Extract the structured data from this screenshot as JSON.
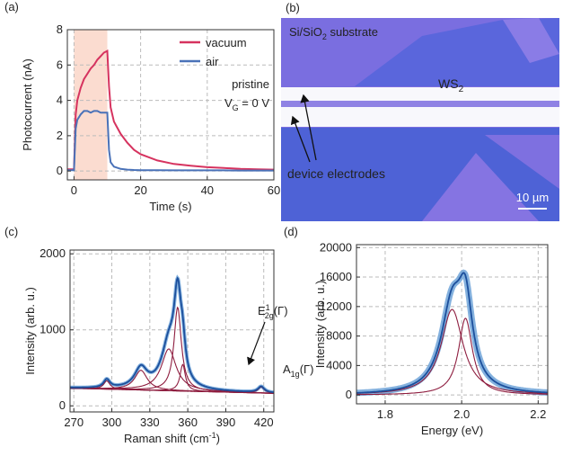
{
  "chart_data": [
    {
      "type": "line",
      "title": "(a)",
      "x_label": "Time (s)",
      "y_label": "Photocurrent (nA)",
      "x": [
        -2,
        0,
        0.5,
        1,
        2,
        3,
        4,
        5,
        6,
        7,
        8,
        9,
        10,
        10.5,
        11,
        12,
        14,
        16,
        18,
        20,
        25,
        30,
        35,
        40,
        45,
        50,
        55,
        60
      ],
      "series": [
        {
          "name": "vacuum",
          "color": "#d6335f",
          "values": [
            0.1,
            0.1,
            3.2,
            4.0,
            4.7,
            5.2,
            5.5,
            5.8,
            6.0,
            6.3,
            6.5,
            6.7,
            6.8,
            4.8,
            3.6,
            2.8,
            2.1,
            1.6,
            1.2,
            0.95,
            0.6,
            0.4,
            0.3,
            0.22,
            0.17,
            0.12,
            0.1,
            0.08
          ]
        },
        {
          "name": "air",
          "color": "#4a72b8",
          "values": [
            0.05,
            0.05,
            2.4,
            2.9,
            3.2,
            3.4,
            3.4,
            3.3,
            3.4,
            3.4,
            3.3,
            3.3,
            3.3,
            1.2,
            0.5,
            0.25,
            0.12,
            0.08,
            0.06,
            0.05,
            0.05,
            0.04,
            0.04,
            0.04,
            0.04,
            0.03,
            0.03,
            0.03
          ]
        }
      ],
      "xlim": [
        -2,
        60
      ],
      "ylim": [
        -0.5,
        8
      ],
      "xticks": [
        0,
        20,
        40,
        60
      ],
      "yticks": [
        0,
        2,
        4,
        6,
        8
      ],
      "grid": true,
      "legend": "upper right",
      "shade": {
        "x": [
          0,
          10
        ],
        "color": "#fbdcd0"
      },
      "annotations": [
        "pristine",
        {
          "text": "V",
          "sub": "G",
          "after": " = 0 V"
        }
      ]
    },
    {
      "type": "spectrum",
      "title": "(c)",
      "x_label": {
        "text": "Raman shift (cm",
        "sup": "-1",
        "after": ")"
      },
      "y_label": "Intensity (arb. u.)",
      "xlim": [
        267,
        428
      ],
      "ylim": [
        -80,
        2050
      ],
      "xticks": [
        270,
        300,
        330,
        360,
        390,
        420
      ],
      "yticks": [
        0,
        1000,
        2000
      ],
      "grid": true,
      "data_color": "#6fa3d8",
      "fit_color": "#1c4f9c",
      "component_color": "#8e1d3f",
      "baseline": {
        "x": [
          270,
          425
        ],
        "y": [
          230,
          165
        ]
      },
      "peaks": [
        {
          "center": 296,
          "height": 110,
          "width": 3
        },
        {
          "center": 323,
          "height": 260,
          "width": 6
        },
        {
          "center": 345,
          "height": 550,
          "width": 7
        },
        {
          "center": 352,
          "height": 1100,
          "width": 3.5
        },
        {
          "center": 356,
          "height": 350,
          "width": 2.5
        },
        {
          "center": 418,
          "height": 80,
          "width": 3
        }
      ],
      "annotations": [
        {
          "text": "E",
          "sup": "1",
          "sub": "2g",
          "after": "(Γ)"
        },
        {
          "text": "A",
          "sub": "1g",
          "after": "(Γ)"
        }
      ]
    },
    {
      "type": "spectrum",
      "title": "(d)",
      "x_label": "Energy (eV)",
      "y_label": "Intensity (arb. u.)",
      "xlim": [
        1.725,
        2.225
      ],
      "ylim": [
        -1200,
        20400
      ],
      "xticks": [
        1.8,
        {
          "value": 2,
          "label": "2.0"
        },
        2.2
      ],
      "yticks": [
        0,
        4000,
        8000,
        12000,
        16000,
        20000
      ],
      "grid": true,
      "data_color": "#6fa3d8",
      "fit_color": "#1c4f9c",
      "component_color": "#8e1d3f",
      "peaks": [
        {
          "center": 1.975,
          "height": 11600,
          "width": 0.035
        },
        {
          "center": 2.01,
          "height": 10400,
          "width": 0.022
        }
      ]
    }
  ],
  "micrograph": {
    "title": "(b)",
    "substrate": {
      "text": "Si/SiO",
      "sub": "2",
      "after": " substrate"
    },
    "flake": {
      "text": "WS",
      "sub": "2"
    },
    "electrodes": "device electrodes",
    "scale": "10 µm"
  }
}
